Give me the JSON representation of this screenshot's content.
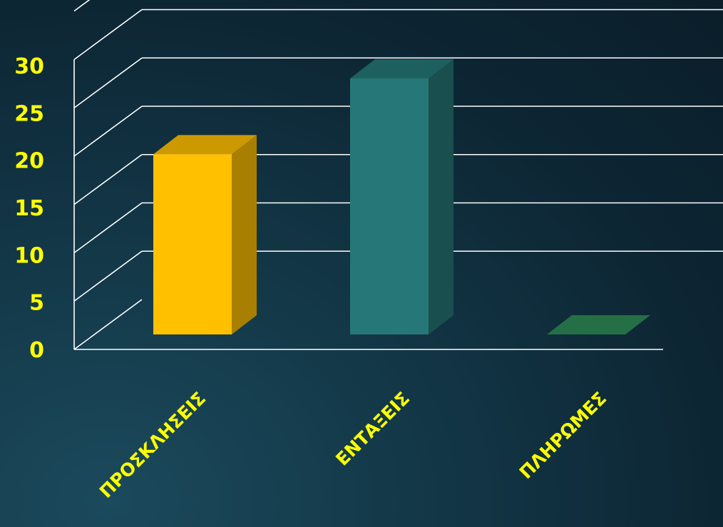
{
  "chart_data": {
    "type": "bar",
    "title": "",
    "xlabel": "",
    "ylabel": "",
    "categories": [
      "ΠΡΟΣΚΛΗΣΕΙΣ",
      "ΕΝΤΑΞΕΙΣ",
      "ΠΛΗΡΩΜΕΣ"
    ],
    "values": [
      19,
      27,
      0
    ],
    "ylim": [
      0,
      30
    ],
    "yticks": [
      "0",
      "5",
      "10",
      "15",
      "20",
      "25",
      "30"
    ],
    "grid": true,
    "legend": "none",
    "style": "3d-bars",
    "colors": {
      "bars": [
        "#ffc000",
        "#267878",
        "#2e8b57"
      ],
      "tick_labels": "#ffff00",
      "category_labels": "#ffff00",
      "grid": "#ffffff"
    }
  }
}
